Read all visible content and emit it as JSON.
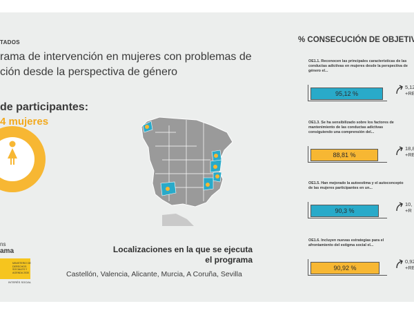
{
  "left": {
    "section_label": "TADOS",
    "title_line1": "rama de intervención en mujeres con problemas de",
    "title_line2": "ción desde la perspectiva de género",
    "participants_title": "de participantes:",
    "participants_count": "4 mujeres",
    "logo_line1": "ns",
    "logo_line2": "ama",
    "gov_text": "MINISTERIO DE DERECHOS SOCIALES Y AGENDA 2030",
    "gov_sub": "INTERÉS SOCIAL"
  },
  "map": {
    "locations_title_line1": "Localizaciones en la que se ejecuta",
    "locations_title_line2": "el programa",
    "locations_list": "Castellón, Valencia, Alicante, Murcia, A Coruña, Sevilla",
    "colors": {
      "land": "#9a9a9a",
      "highlight": "#29aac9",
      "marker": "#f7b733"
    }
  },
  "consecucion": {
    "title": "% CONSECUCIÓN DE OBJETIV",
    "objectives": [
      {
        "text_line1": "OE1.1. Reconocen las principales características de las",
        "text_line2": "conductas adictivas en mujeres desde la perspectiva de",
        "text_line3": "género el...",
        "value_label": "95,12 %",
        "value": 95.12,
        "color": "#29aac9",
        "delta_line1": "5,12",
        "delta_line2": "+RE"
      },
      {
        "text_line1": "OE1.3. Se ha sensibilizado sobre los factores de",
        "text_line2": "mantenimiento de las conductas adictivas",
        "text_line3": "consiguiendo una comprensión del...",
        "value_label": "88,81 %",
        "value": 88.81,
        "color": "#f7b733",
        "delta_line1": "18,8",
        "delta_line2": "+RE"
      },
      {
        "text_line1": "OE1.5. Han mejorado la autoestima y el autoconcepto",
        "text_line2": "de las mujeres participantes en un...",
        "text_line3": "",
        "value_label": "90,3 %",
        "value": 90.3,
        "color": "#29aac9",
        "delta_line1": "10,",
        "delta_line2": "+R"
      },
      {
        "text_line1": "OE1.6. Incluyen nuevas estrategias para el",
        "text_line2": "afrontamiento del estigma social el...",
        "text_line3": "",
        "value_label": "90,92 %",
        "value": 90.92,
        "color": "#f7b733",
        "delta_line1": "0,92",
        "delta_line2": "+RE"
      }
    ]
  }
}
